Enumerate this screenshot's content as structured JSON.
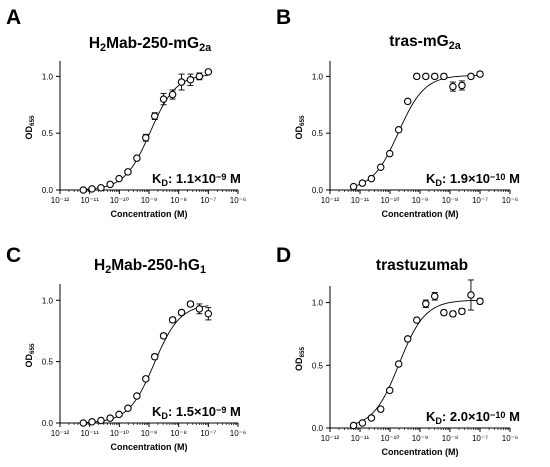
{
  "chart_data": [
    {
      "type": "scatter",
      "panel_label": "A",
      "title": "H2Mab-250-mG2a",
      "title_parts": [
        {
          "t": "H"
        },
        {
          "t": "2",
          "sub": true
        },
        {
          "t": "Mab-250-mG"
        },
        {
          "t": "2a",
          "sub": true
        }
      ],
      "xlabel": "Concentration (M)",
      "ylabel": "OD655",
      "ylabel_parts": [
        {
          "t": "OD"
        },
        {
          "t": "655",
          "sub": true
        }
      ],
      "xscale": "log",
      "xlim": [
        1e-12,
        1e-06
      ],
      "ylim": [
        0,
        1.1
      ],
      "xticks": [
        "10⁻¹²",
        "10⁻¹¹",
        "10⁻¹⁰",
        "10⁻⁹",
        "10⁻⁸",
        "10⁻⁷",
        "10⁻⁶"
      ],
      "yticks": [
        "0.0",
        "0.5",
        "1.0"
      ],
      "annotation": "KD: 1.1×10⁻⁹ M",
      "annotation_parts": [
        {
          "t": "K"
        },
        {
          "t": "D",
          "sub": true
        },
        {
          "t": ": 1.1×10"
        },
        {
          "t": "−9",
          "sup": true
        },
        {
          "t": " M"
        }
      ],
      "fit": {
        "bottom": 0.0,
        "top": 1.02,
        "kd": 1.1e-09
      },
      "x": [
        6.1e-12,
        1.2e-11,
        2.4e-11,
        4.9e-11,
        9.8e-11,
        1.95e-10,
        3.9e-10,
        7.8e-10,
        1.56e-09,
        3.1e-09,
        6.25e-09,
        1.25e-08,
        2.5e-08,
        5e-08,
        1e-07
      ],
      "y": [
        0.0,
        0.01,
        0.02,
        0.05,
        0.1,
        0.16,
        0.28,
        0.46,
        0.65,
        0.8,
        0.84,
        0.95,
        0.97,
        1.0,
        1.04
      ],
      "err": [
        0,
        0,
        0,
        0,
        0,
        0,
        0,
        0.03,
        0.03,
        0.05,
        0.04,
        0.07,
        0.05,
        0.03,
        0.01
      ]
    },
    {
      "type": "scatter",
      "panel_label": "B",
      "title": "tras-mG2a",
      "title_parts": [
        {
          "t": "tras-mG"
        },
        {
          "t": "2a",
          "sub": true
        }
      ],
      "xlabel": "Concentration (M)",
      "ylabel": "OD655",
      "ylabel_parts": [
        {
          "t": "OD"
        },
        {
          "t": "655",
          "sub": true
        }
      ],
      "xscale": "log",
      "xlim": [
        1e-12,
        1e-06
      ],
      "ylim": [
        0,
        1.1
      ],
      "xticks": [
        "10⁻¹²",
        "10⁻¹¹",
        "10⁻¹⁰",
        "10⁻⁹",
        "10⁻⁸",
        "10⁻⁷",
        "10⁻⁶"
      ],
      "yticks": [
        "0.0",
        "0.5",
        "1.0"
      ],
      "annotation": "KD: 1.9×10⁻¹⁰ M",
      "annotation_parts": [
        {
          "t": "K"
        },
        {
          "t": "D",
          "sub": true
        },
        {
          "t": ": 1.9×10"
        },
        {
          "t": "−10",
          "sup": true
        },
        {
          "t": " M"
        }
      ],
      "fit": {
        "bottom": 0.0,
        "top": 1.01,
        "kd": 1.9e-10
      },
      "x": [
        6.1e-12,
        1.2e-11,
        2.4e-11,
        4.9e-11,
        9.8e-11,
        1.95e-10,
        3.9e-10,
        7.8e-10,
        1.56e-09,
        3.1e-09,
        6.25e-09,
        1.25e-08,
        2.5e-08,
        5e-08,
        1e-07
      ],
      "y": [
        0.03,
        0.06,
        0.1,
        0.2,
        0.32,
        0.53,
        0.78,
        1.0,
        1.0,
        1.0,
        1.0,
        0.91,
        0.92,
        1.0,
        1.02
      ],
      "err": [
        0,
        0,
        0,
        0,
        0,
        0,
        0,
        0.02,
        0.02,
        0.02,
        0.02,
        0.04,
        0.04,
        0.02,
        0.02
      ]
    },
    {
      "type": "scatter",
      "panel_label": "C",
      "title": "H2Mab-250-hG1",
      "title_parts": [
        {
          "t": "H"
        },
        {
          "t": "2",
          "sub": true
        },
        {
          "t": "Mab-250-hG"
        },
        {
          "t": "1",
          "sub": true
        }
      ],
      "xlabel": "Concentration (M)",
      "ylabel": "OD655",
      "ylabel_parts": [
        {
          "t": "OD"
        },
        {
          "t": "655",
          "sub": true
        }
      ],
      "xscale": "log",
      "xlim": [
        1e-12,
        1e-06
      ],
      "ylim": [
        0,
        1.1
      ],
      "xticks": [
        "10⁻¹²",
        "10⁻¹¹",
        "10⁻¹⁰",
        "10⁻⁹",
        "10⁻⁸",
        "10⁻⁷",
        "10⁻⁶"
      ],
      "yticks": [
        "0.0",
        "0.5",
        "1.0"
      ],
      "annotation": "KD: 1.5×10⁻⁹ M",
      "annotation_parts": [
        {
          "t": "K"
        },
        {
          "t": "D",
          "sub": true
        },
        {
          "t": ": 1.5×10"
        },
        {
          "t": "−9",
          "sup": true
        },
        {
          "t": " M"
        }
      ],
      "fit": {
        "bottom": 0.0,
        "top": 0.97,
        "kd": 1.5e-09
      },
      "x": [
        6.1e-12,
        1.2e-11,
        2.4e-11,
        4.9e-11,
        9.8e-11,
        1.95e-10,
        3.9e-10,
        7.8e-10,
        1.56e-09,
        3.1e-09,
        6.25e-09,
        1.25e-08,
        2.5e-08,
        5e-08,
        1e-07
      ],
      "y": [
        0.0,
        0.01,
        0.02,
        0.04,
        0.07,
        0.12,
        0.22,
        0.36,
        0.54,
        0.71,
        0.84,
        0.9,
        0.97,
        0.93,
        0.89
      ],
      "err": [
        0,
        0,
        0,
        0,
        0,
        0,
        0,
        0,
        0.02,
        0.02,
        0.02,
        0.02,
        0.02,
        0.04,
        0.05
      ]
    },
    {
      "type": "scatter",
      "panel_label": "D",
      "title": "trastuzumab",
      "title_parts": [
        {
          "t": "trastuzumab"
        }
      ],
      "xlabel": "Concentration (M)",
      "ylabel": "OD655",
      "ylabel_parts": [
        {
          "t": "OD"
        },
        {
          "t": "655",
          "sub": true
        }
      ],
      "xscale": "log",
      "xlim": [
        1e-12,
        1e-06
      ],
      "ylim": [
        0,
        1.1
      ],
      "xticks": [
        "10⁻¹²",
        "10⁻¹¹",
        "10⁻¹⁰",
        "10⁻⁹",
        "10⁻⁸",
        "10⁻⁷",
        "10⁻⁶"
      ],
      "yticks": [
        "0.0",
        "0.5",
        "1.0"
      ],
      "annotation": "KD: 2.0×10⁻¹⁰ M",
      "annotation_parts": [
        {
          "t": "K"
        },
        {
          "t": "D",
          "sub": true
        },
        {
          "t": ": 2.0×10"
        },
        {
          "t": "−10",
          "sup": true
        },
        {
          "t": " M"
        }
      ],
      "fit": {
        "bottom": 0.0,
        "top": 1.02,
        "kd": 2e-10
      },
      "x": [
        6.1e-12,
        1.2e-11,
        2.4e-11,
        4.9e-11,
        9.8e-11,
        1.95e-10,
        3.9e-10,
        7.8e-10,
        1.56e-09,
        3.1e-09,
        6.25e-09,
        1.25e-08,
        2.5e-08,
        5e-08,
        1e-07
      ],
      "y": [
        0.02,
        0.04,
        0.08,
        0.15,
        0.3,
        0.51,
        0.71,
        0.86,
        0.99,
        1.05,
        0.92,
        0.91,
        0.93,
        1.06,
        1.01
      ],
      "err": [
        0,
        0,
        0,
        0,
        0,
        0,
        0,
        0,
        0.03,
        0.03,
        0.02,
        0.02,
        0.02,
        0.12,
        0.02
      ]
    }
  ]
}
